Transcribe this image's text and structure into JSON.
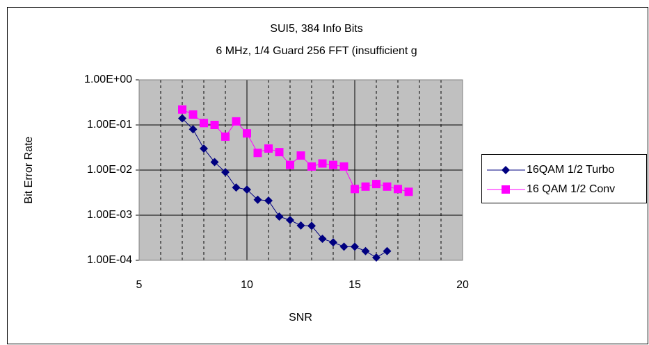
{
  "chart_data": {
    "type": "line",
    "title": "SUI5, 384 Info Bits",
    "subtitle": "6 MHz, 1/4 Guard 256 FFT (insufficient g",
    "x_label": "SNR",
    "y_label": "Bit  Error  Rate",
    "yscale": "log",
    "xlim": [
      5,
      20
    ],
    "xticks": [
      5,
      10,
      15,
      20
    ],
    "x_minor_grid": [
      6,
      7,
      8,
      9,
      11,
      12,
      13,
      14,
      16,
      17,
      18,
      19
    ],
    "ylim": [
      0.0001,
      1
    ],
    "yticks": [
      {
        "value": 1,
        "label": "1.00E+00"
      },
      {
        "value": 0.1,
        "label": "1.00E-01"
      },
      {
        "value": 0.01,
        "label": "1.00E-02"
      },
      {
        "value": 0.001,
        "label": "1.00E-03"
      },
      {
        "value": 0.0001,
        "label": "1.00E-04"
      }
    ],
    "grid": true,
    "legend": "right",
    "series": [
      {
        "name": "16QAM 1/2 Turbo",
        "color": "#000080",
        "marker": "diamond",
        "x": [
          7,
          7.5,
          8,
          8.5,
          9,
          9.5,
          10,
          10.5,
          11,
          11.5,
          12,
          12.5,
          13,
          13.5,
          14,
          14.5,
          15,
          15.5,
          16,
          16.5
        ],
        "values": [
          0.14,
          0.08,
          0.03,
          0.015,
          0.009,
          0.0041,
          0.0037,
          0.0022,
          0.0021,
          0.00093,
          0.00078,
          0.00059,
          0.00058,
          0.0003,
          0.00025,
          0.0002,
          0.0002,
          0.00016,
          0.000115,
          0.00016
        ]
      },
      {
        "name": "16 QAM 1/2 Conv",
        "color": "#ff00ff",
        "marker": "square",
        "x": [
          7,
          7.5,
          8,
          8.5,
          9,
          9.5,
          10,
          10.5,
          11,
          11.5,
          12,
          12.5,
          13,
          13.5,
          14,
          14.5,
          15,
          15.5,
          16,
          16.5,
          17,
          17.5
        ],
        "values": [
          0.22,
          0.17,
          0.11,
          0.1,
          0.055,
          0.12,
          0.065,
          0.024,
          0.03,
          0.025,
          0.013,
          0.021,
          0.012,
          0.014,
          0.013,
          0.012,
          0.0038,
          0.0043,
          0.0049,
          0.0043,
          0.0038,
          0.0033
        ]
      }
    ]
  }
}
